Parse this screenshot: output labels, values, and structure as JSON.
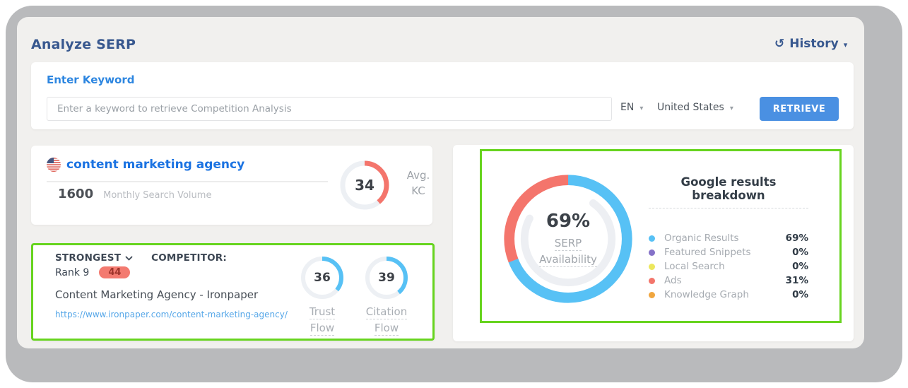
{
  "header": {
    "title": "Analyze SERP",
    "history_label": "History"
  },
  "search": {
    "section_title": "Enter Keyword",
    "placeholder": "Enter a keyword to retrieve Competition Analysis",
    "language": "EN",
    "country": "United States",
    "retrieve_label": "RETRIEVE"
  },
  "keyword_card": {
    "keyword": "content marketing agency",
    "volume": "1600",
    "volume_label": "Monthly Search Volume",
    "kc_value": "34",
    "kc_label_line1": "Avg.",
    "kc_label_line2": "KC"
  },
  "competitor_card": {
    "strongest_label": "STRONGEST",
    "competitor_label": "COMPETITOR:",
    "rank": "Rank 9",
    "badge": "44",
    "name": "Content Marketing Agency - Ironpaper",
    "url": "https://www.ironpaper.com/content-marketing-agency/",
    "trust_value": "36",
    "trust_label_line1": "Trust",
    "trust_label_line2": "Flow",
    "citation_value": "39",
    "citation_label_line1": "Citation",
    "citation_label_line2": "Flow"
  },
  "breakdown_card": {
    "title": "Google results breakdown",
    "center_value": "69%",
    "center_label_line1": "SERP",
    "center_label_line2": "Availability",
    "legend": [
      {
        "label": "Organic Results",
        "value": "69%",
        "color": "#57c1f5"
      },
      {
        "label": "Featured Snippets",
        "value": "0%",
        "color": "#8572c8"
      },
      {
        "label": "Local Search",
        "value": "0%",
        "color": "#ece75d"
      },
      {
        "label": "Ads",
        "value": "31%",
        "color": "#f3756b"
      },
      {
        "label": "Knowledge Graph",
        "value": "0%",
        "color": "#f0a63f"
      }
    ]
  },
  "chart_data": {
    "type": "pie",
    "title": "Google results breakdown",
    "categories": [
      "Organic Results",
      "Featured Snippets",
      "Local Search",
      "Ads",
      "Knowledge Graph"
    ],
    "values": [
      69,
      0,
      0,
      31,
      0
    ],
    "center_label": "69% SERP Availability",
    "gauges": [
      {
        "label": "Avg. KC",
        "value": 34
      },
      {
        "label": "Trust Flow",
        "value": 36
      },
      {
        "label": "Citation Flow",
        "value": 39
      }
    ]
  },
  "colors": {
    "accent_blue": "#4a90e2",
    "link_blue": "#1b73e2",
    "navy": "#38588f",
    "salmon": "#f4756c",
    "sky": "#57c1f5",
    "green_border": "#67d41f",
    "track": "#edf0f4"
  }
}
